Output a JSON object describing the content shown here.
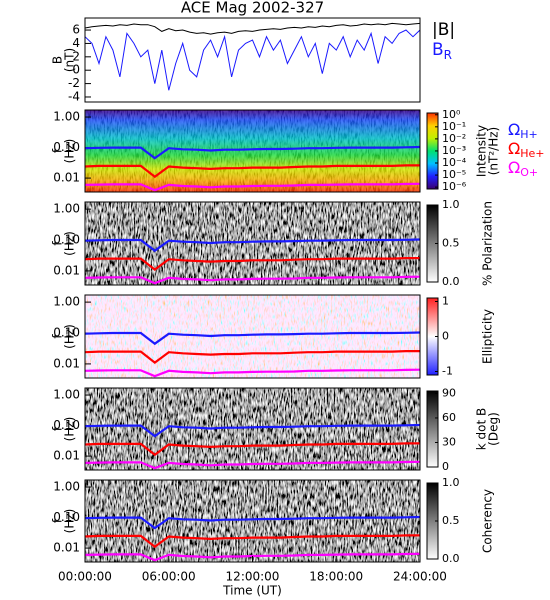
{
  "chart_data": [
    {
      "type": "line",
      "title": "ACE Mag 2002-327",
      "ylabel": [
        "B",
        "(nT)"
      ],
      "x": [
        0,
        0.5,
        1,
        1.5,
        2,
        2.5,
        3,
        3.5,
        4,
        4.5,
        5,
        5.5,
        6,
        6.5,
        7,
        7.5,
        8,
        8.5,
        9,
        9.5,
        10,
        10.5,
        11,
        11.5,
        12,
        12.5,
        13,
        13.5,
        14,
        14.5,
        15,
        15.5,
        16,
        16.5,
        17,
        17.5,
        18,
        18.5,
        19,
        19.5,
        20,
        20.5,
        21,
        21.5,
        22,
        22.5,
        23,
        23.5,
        24
      ],
      "xlim": [
        0,
        24
      ],
      "ylim": [
        -4.75,
        7.8
      ],
      "yticks": [
        -4,
        -2,
        0,
        2,
        4,
        6
      ],
      "series": [
        {
          "name": "|B|",
          "color": "#000000",
          "values": [
            6.3,
            6.5,
            6.6,
            6.7,
            6.6,
            6.8,
            6.7,
            6.9,
            6.8,
            6.8,
            6.5,
            5.8,
            6.2,
            5.9,
            6.0,
            5.7,
            5.5,
            5.6,
            5.4,
            5.6,
            5.7,
            5.5,
            5.8,
            5.9,
            5.8,
            6.0,
            6.1,
            6.2,
            6.1,
            6.3,
            6.4,
            6.3,
            6.5,
            6.4,
            6.6,
            6.5,
            6.7,
            6.8,
            6.6,
            6.7,
            6.9,
            6.8,
            6.9,
            6.8,
            7.0,
            6.9,
            6.8,
            6.9,
            7.0
          ]
        },
        {
          "name": "B",
          "subscript": "R",
          "color": "#1a1aff",
          "values": [
            5,
            4,
            1,
            5,
            3,
            -1,
            5.5,
            4,
            2,
            3,
            -2,
            3,
            -3,
            1,
            4,
            0,
            -1,
            3,
            4.5,
            2,
            5,
            -1,
            3,
            4,
            4.5,
            2,
            5,
            3,
            4.5,
            1,
            3,
            5,
            2,
            4,
            -0.5,
            4,
            3,
            5,
            2,
            4.5,
            3,
            5.5,
            1,
            5,
            4,
            5.5,
            6,
            5,
            6
          ]
        }
      ]
    },
    {
      "type": "spectrogram",
      "ylabel": [
        "f",
        "(Hz)"
      ],
      "log_scale": true,
      "xlim": [
        0,
        24
      ],
      "ylim": [
        0.0035,
        1.7
      ],
      "yticks": [
        {
          "value": 1,
          "label": "1.00"
        },
        {
          "value": 0.1,
          "label": "0.10"
        },
        {
          "value": 0.01,
          "label": "0.01"
        }
      ],
      "colorbar": {
        "label": [
          "Intensity",
          "(nT²/Hz)"
        ],
        "log_scale": true,
        "lim": [
          7e-07,
          1.4
        ],
        "colors": [
          "#3a0070",
          "#2020ff",
          "#00c0ff",
          "#00e070",
          "#c0f000",
          "#ffd000",
          "#ff3000"
        ],
        "ticks": [
          {
            "value": 1,
            "label": "10⁰"
          },
          {
            "value": 0.1,
            "label": "10⁻¹"
          },
          {
            "value": 0.01,
            "label": "10⁻²"
          },
          {
            "value": 0.001,
            "label": "10⁻³"
          },
          {
            "value": 0.0001,
            "label": "10⁻⁴"
          },
          {
            "value": 1e-05,
            "label": "10⁻⁵"
          },
          {
            "value": 1e-06,
            "label": "10⁻⁶"
          }
        ]
      },
      "x": [
        0,
        1,
        2,
        3,
        4,
        5,
        6,
        7,
        8,
        9,
        10,
        11,
        12,
        13,
        14,
        15,
        16,
        17,
        18,
        19,
        20,
        21,
        22,
        23,
        24
      ],
      "series": [
        {
          "name": "Ω",
          "subscript": "H+",
          "color": "#1a1aff",
          "values": [
            0.095,
            0.098,
            0.1,
            0.1,
            0.1,
            0.045,
            0.095,
            0.088,
            0.085,
            0.08,
            0.085,
            0.085,
            0.088,
            0.09,
            0.09,
            0.092,
            0.095,
            0.095,
            0.098,
            0.1,
            0.1,
            0.1,
            0.1,
            0.102,
            0.104
          ]
        },
        {
          "name": "Ω",
          "subscript": "He+",
          "color": "#ff0000",
          "values": [
            0.024,
            0.025,
            0.025,
            0.025,
            0.025,
            0.011,
            0.024,
            0.022,
            0.021,
            0.02,
            0.021,
            0.021,
            0.022,
            0.022,
            0.022,
            0.023,
            0.024,
            0.024,
            0.025,
            0.025,
            0.025,
            0.025,
            0.025,
            0.026,
            0.026
          ]
        },
        {
          "name": "Ω",
          "subscript": "O+",
          "color": "#ff00ff",
          "values": [
            0.006,
            0.0061,
            0.0062,
            0.0062,
            0.0062,
            0.004,
            0.006,
            0.0055,
            0.0053,
            0.005,
            0.0053,
            0.0053,
            0.0055,
            0.0056,
            0.0056,
            0.0057,
            0.006,
            0.006,
            0.0061,
            0.0062,
            0.0062,
            0.0062,
            0.0062,
            0.0064,
            0.0065
          ]
        }
      ]
    },
    {
      "type": "spectrogram",
      "ylabel": [
        "f",
        "(Hz)"
      ],
      "log_scale": true,
      "xlim": [
        0,
        24
      ],
      "ylim": [
        0.0035,
        1.7
      ],
      "yticks": [
        {
          "value": 1,
          "label": "1.00"
        },
        {
          "value": 0.1,
          "label": "0.10"
        },
        {
          "value": 0.01,
          "label": "0.01"
        }
      ],
      "colorbar": {
        "label": [
          "% Polarization"
        ],
        "lim": [
          0,
          1
        ],
        "colors": [
          "#ffffff",
          "#000000"
        ],
        "ticks": [
          {
            "value": 1,
            "label": "1.0"
          },
          {
            "value": 0.5,
            "label": "0.5"
          },
          {
            "value": 0,
            "label": "0.0"
          }
        ]
      },
      "x": [
        0,
        1,
        2,
        3,
        4,
        5,
        6,
        7,
        8,
        9,
        10,
        11,
        12,
        13,
        14,
        15,
        16,
        17,
        18,
        19,
        20,
        21,
        22,
        23,
        24
      ],
      "series": [
        {
          "color": "#1a1aff",
          "values": [
            0.095,
            0.098,
            0.1,
            0.1,
            0.1,
            0.045,
            0.095,
            0.088,
            0.085,
            0.08,
            0.085,
            0.085,
            0.088,
            0.09,
            0.09,
            0.092,
            0.095,
            0.095,
            0.098,
            0.1,
            0.1,
            0.1,
            0.1,
            0.102,
            0.104
          ]
        },
        {
          "color": "#ff0000",
          "values": [
            0.024,
            0.025,
            0.025,
            0.025,
            0.025,
            0.011,
            0.024,
            0.022,
            0.021,
            0.02,
            0.021,
            0.021,
            0.022,
            0.022,
            0.022,
            0.023,
            0.024,
            0.024,
            0.025,
            0.025,
            0.025,
            0.025,
            0.025,
            0.026,
            0.026
          ]
        },
        {
          "color": "#ff00ff",
          "values": [
            0.006,
            0.0061,
            0.0062,
            0.0062,
            0.0062,
            0.004,
            0.006,
            0.0055,
            0.0053,
            0.005,
            0.0053,
            0.0053,
            0.0055,
            0.0056,
            0.0056,
            0.0057,
            0.006,
            0.006,
            0.0061,
            0.0062,
            0.0062,
            0.0062,
            0.0062,
            0.0064,
            0.0065
          ]
        }
      ]
    },
    {
      "type": "spectrogram",
      "ylabel": [
        "f",
        "(Hz)"
      ],
      "log_scale": true,
      "xlim": [
        0,
        24
      ],
      "ylim": [
        0.0035,
        1.7
      ],
      "yticks": [
        {
          "value": 1,
          "label": "1.00"
        },
        {
          "value": 0.1,
          "label": "0.10"
        },
        {
          "value": 0.01,
          "label": "0.01"
        }
      ],
      "colorbar": {
        "label": [
          "Ellipticity"
        ],
        "lim": [
          -1.1,
          1.1
        ],
        "colors": [
          "#2020ff",
          "#ffffff",
          "#ff2020"
        ],
        "ticks": [
          1,
          0,
          -1
        ]
      },
      "x": [
        0,
        1,
        2,
        3,
        4,
        5,
        6,
        7,
        8,
        9,
        10,
        11,
        12,
        13,
        14,
        15,
        16,
        17,
        18,
        19,
        20,
        21,
        22,
        23,
        24
      ],
      "series": [
        {
          "color": "#1a1aff",
          "values": [
            0.095,
            0.098,
            0.1,
            0.1,
            0.1,
            0.045,
            0.095,
            0.088,
            0.085,
            0.08,
            0.085,
            0.085,
            0.088,
            0.09,
            0.09,
            0.092,
            0.095,
            0.095,
            0.098,
            0.1,
            0.1,
            0.1,
            0.1,
            0.102,
            0.104
          ]
        },
        {
          "color": "#ff0000",
          "values": [
            0.024,
            0.025,
            0.025,
            0.025,
            0.025,
            0.011,
            0.024,
            0.022,
            0.021,
            0.02,
            0.021,
            0.021,
            0.022,
            0.022,
            0.022,
            0.023,
            0.024,
            0.024,
            0.025,
            0.025,
            0.025,
            0.025,
            0.025,
            0.026,
            0.026
          ]
        },
        {
          "color": "#ff00ff",
          "values": [
            0.006,
            0.0061,
            0.0062,
            0.0062,
            0.0062,
            0.004,
            0.006,
            0.0055,
            0.0053,
            0.005,
            0.0053,
            0.0053,
            0.0055,
            0.0056,
            0.0056,
            0.0057,
            0.006,
            0.006,
            0.0061,
            0.0062,
            0.0062,
            0.0062,
            0.0062,
            0.0064,
            0.0065
          ]
        }
      ]
    },
    {
      "type": "spectrogram",
      "ylabel": [
        "f",
        "(Hz)"
      ],
      "log_scale": true,
      "xlim": [
        0,
        24
      ],
      "ylim": [
        0.0035,
        1.7
      ],
      "yticks": [
        {
          "value": 1,
          "label": "1.00"
        },
        {
          "value": 0.1,
          "label": "0.10"
        },
        {
          "value": 0.01,
          "label": "0.01"
        }
      ],
      "colorbar": {
        "label": [
          "k dot B",
          "(Deg)"
        ],
        "lim": [
          0,
          93
        ],
        "colors": [
          "#ffffff",
          "#000000"
        ],
        "ticks": [
          90,
          60,
          30,
          0
        ]
      },
      "x": [
        0,
        1,
        2,
        3,
        4,
        5,
        6,
        7,
        8,
        9,
        10,
        11,
        12,
        13,
        14,
        15,
        16,
        17,
        18,
        19,
        20,
        21,
        22,
        23,
        24
      ],
      "series": [
        {
          "color": "#1a1aff",
          "values": [
            0.095,
            0.098,
            0.1,
            0.1,
            0.1,
            0.045,
            0.095,
            0.088,
            0.085,
            0.08,
            0.085,
            0.085,
            0.088,
            0.09,
            0.09,
            0.092,
            0.095,
            0.095,
            0.098,
            0.1,
            0.1,
            0.1,
            0.1,
            0.102,
            0.104
          ]
        },
        {
          "color": "#ff0000",
          "values": [
            0.024,
            0.025,
            0.025,
            0.025,
            0.025,
            0.011,
            0.024,
            0.022,
            0.021,
            0.02,
            0.021,
            0.021,
            0.022,
            0.022,
            0.022,
            0.023,
            0.024,
            0.024,
            0.025,
            0.025,
            0.025,
            0.025,
            0.025,
            0.026,
            0.026
          ]
        },
        {
          "color": "#ff00ff",
          "values": [
            0.006,
            0.0061,
            0.0062,
            0.0062,
            0.0062,
            0.004,
            0.006,
            0.0055,
            0.0053,
            0.005,
            0.0053,
            0.0053,
            0.0055,
            0.0056,
            0.0056,
            0.0057,
            0.006,
            0.006,
            0.0061,
            0.0062,
            0.0062,
            0.0062,
            0.0062,
            0.0064,
            0.0065
          ]
        }
      ]
    },
    {
      "type": "spectrogram",
      "ylabel": [
        "f",
        "(Hz)"
      ],
      "log_scale": true,
      "xlim": [
        0,
        24
      ],
      "ylim": [
        0.0035,
        1.7
      ],
      "yticks": [
        {
          "value": 1,
          "label": "1.00"
        },
        {
          "value": 0.1,
          "label": "0.10"
        },
        {
          "value": 0.01,
          "label": "0.01"
        }
      ],
      "colorbar": {
        "label": [
          "Coherency"
        ],
        "lim": [
          0,
          1
        ],
        "colors": [
          "#ffffff",
          "#000000"
        ],
        "ticks": [
          {
            "value": 1,
            "label": "1.0"
          },
          {
            "value": 0.5,
            "label": "0.5"
          },
          {
            "value": 0,
            "label": "0.0"
          }
        ]
      },
      "xlabel": "Time (UT)",
      "xticks": [
        {
          "value": 0,
          "label": "00:00:00"
        },
        {
          "value": 6,
          "label": "06:00:00"
        },
        {
          "value": 12,
          "label": "12:00:00"
        },
        {
          "value": 18,
          "label": "18:00:00"
        },
        {
          "value": 24,
          "label": "24:00:00"
        }
      ],
      "x": [
        0,
        1,
        2,
        3,
        4,
        5,
        6,
        7,
        8,
        9,
        10,
        11,
        12,
        13,
        14,
        15,
        16,
        17,
        18,
        19,
        20,
        21,
        22,
        23,
        24
      ],
      "series": [
        {
          "color": "#1a1aff",
          "values": [
            0.095,
            0.098,
            0.1,
            0.1,
            0.1,
            0.045,
            0.095,
            0.088,
            0.085,
            0.08,
            0.085,
            0.085,
            0.088,
            0.09,
            0.09,
            0.092,
            0.095,
            0.095,
            0.098,
            0.1,
            0.1,
            0.1,
            0.1,
            0.102,
            0.104
          ]
        },
        {
          "color": "#ff0000",
          "values": [
            0.024,
            0.025,
            0.025,
            0.025,
            0.025,
            0.011,
            0.024,
            0.022,
            0.021,
            0.02,
            0.021,
            0.021,
            0.022,
            0.022,
            0.022,
            0.023,
            0.024,
            0.024,
            0.025,
            0.025,
            0.025,
            0.025,
            0.025,
            0.026,
            0.026
          ]
        },
        {
          "color": "#ff00ff",
          "values": [
            0.006,
            0.0061,
            0.0062,
            0.0062,
            0.0062,
            0.004,
            0.006,
            0.0055,
            0.0053,
            0.005,
            0.0053,
            0.0053,
            0.0055,
            0.0056,
            0.0056,
            0.0057,
            0.006,
            0.006,
            0.0061,
            0.0062,
            0.0062,
            0.0062,
            0.0062,
            0.0064,
            0.0065
          ]
        }
      ]
    }
  ]
}
